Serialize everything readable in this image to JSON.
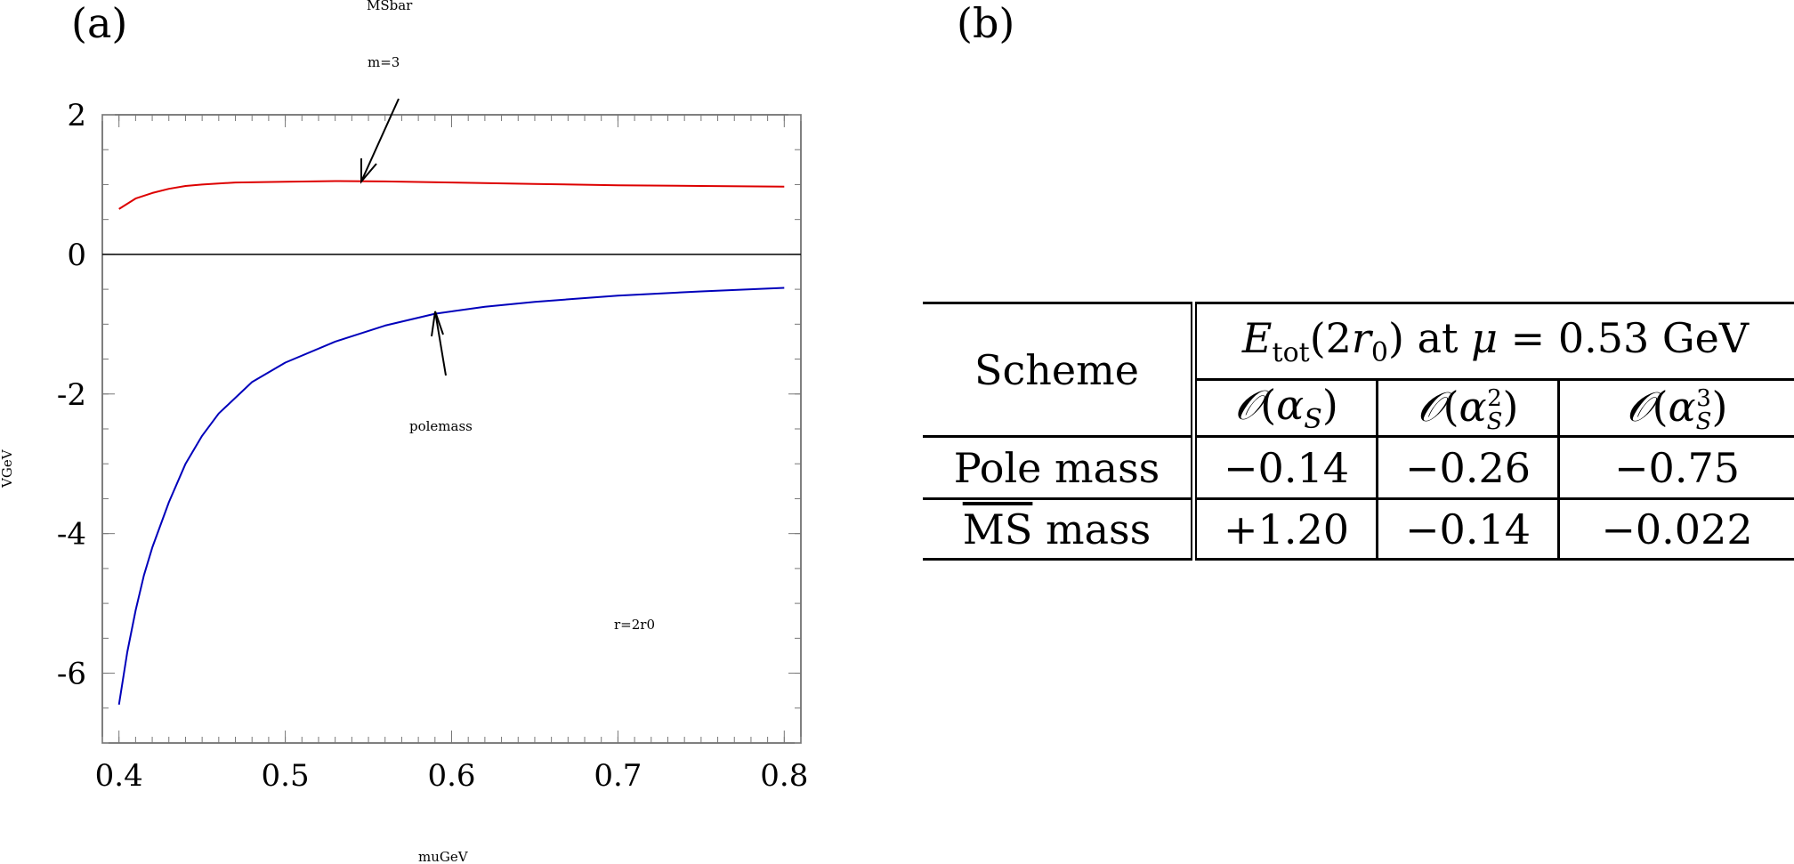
{
  "panel_a": {
    "label": "(a)",
    "annotations": {
      "msbar": "MSbar",
      "m3": "m=3",
      "polemass": "polemass",
      "r2r0": "r=2r0"
    }
  },
  "panel_b": {
    "label": "(b)"
  },
  "chart_data": {
    "type": "line",
    "title": "",
    "xlabel": "muGeV",
    "ylabel": "VGeV",
    "xlim": [
      0.39,
      0.81
    ],
    "ylim": [
      -7,
      2
    ],
    "xticks": [
      "0.4",
      "0.5",
      "0.6",
      "0.7",
      "0.8"
    ],
    "yticks": [
      "2",
      "0",
      "-2",
      "-4",
      "-6"
    ],
    "grid": false,
    "zero_line": true,
    "series": [
      {
        "name": "MSbar",
        "color": "#dd0000",
        "x": [
          0.4,
          0.41,
          0.42,
          0.43,
          0.44,
          0.45,
          0.47,
          0.5,
          0.53,
          0.56,
          0.6,
          0.65,
          0.7,
          0.75,
          0.8
        ],
        "y": [
          0.65,
          0.8,
          0.88,
          0.94,
          0.98,
          1.0,
          1.03,
          1.04,
          1.05,
          1.045,
          1.03,
          1.01,
          0.99,
          0.98,
          0.97
        ]
      },
      {
        "name": "polemass",
        "color": "#0000bb",
        "x": [
          0.4,
          0.405,
          0.41,
          0.415,
          0.42,
          0.43,
          0.44,
          0.45,
          0.46,
          0.48,
          0.5,
          0.53,
          0.56,
          0.59,
          0.62,
          0.65,
          0.7,
          0.75,
          0.8
        ],
        "y": [
          -6.45,
          -5.7,
          -5.1,
          -4.6,
          -4.2,
          -3.55,
          -3.0,
          -2.6,
          -2.28,
          -1.83,
          -1.55,
          -1.25,
          -1.02,
          -0.85,
          -0.75,
          -0.68,
          -0.59,
          -0.53,
          -0.48
        ]
      }
    ]
  },
  "table": {
    "header_scheme": "Scheme",
    "header_group": "E_tot(2r_0) at μ = 0.53 GeV",
    "orders": [
      "O(α_S)",
      "O(α_S^2)",
      "O(α_S^3)"
    ],
    "rows": [
      {
        "scheme": "Pole mass",
        "values": [
          "−0.14",
          "−0.26",
          "−0.75"
        ]
      },
      {
        "scheme": "MS mass",
        "values": [
          "+1.20",
          "−0.14",
          "−0.022"
        ]
      }
    ]
  }
}
